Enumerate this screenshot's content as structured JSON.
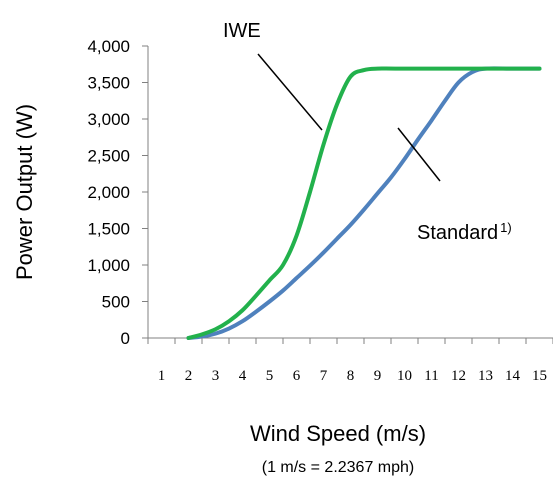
{
  "chart_data": {
    "type": "line",
    "title": "",
    "xlabel": "Wind Speed (m/s)",
    "ylabel": "Power Output (W)",
    "x_note": "(1 m/s = 2.2367 mph)",
    "xlim": [
      0.5,
      15.5
    ],
    "ylim": [
      0,
      4000
    ],
    "x_ticks": [
      "1",
      "2",
      "3",
      "4",
      "5",
      "6",
      "7",
      "8",
      "9",
      "10",
      "11",
      "12",
      "13",
      "14",
      "15"
    ],
    "y_ticks": [
      "0",
      "500",
      "1,000",
      "1,500",
      "2,000",
      "2,500",
      "3,000",
      "3,500",
      "4,000"
    ],
    "grid": false,
    "legend": "none",
    "colors": {
      "IWE": "#22b14c",
      "Standard": "#4f81bd"
    },
    "series": [
      {
        "name": "IWE",
        "x": [
          2,
          2.5,
          3,
          3.5,
          4,
          4.5,
          5,
          5.5,
          6,
          6.5,
          7,
          7.5,
          8,
          8.5,
          9,
          10,
          11,
          12,
          13,
          14,
          15
        ],
        "values": [
          0,
          50,
          120,
          230,
          380,
          580,
          790,
          1000,
          1400,
          2000,
          2650,
          3200,
          3580,
          3670,
          3690,
          3690,
          3690,
          3690,
          3690,
          3690,
          3690
        ]
      },
      {
        "name": "Standard",
        "x": [
          2,
          2.5,
          3,
          3.5,
          4,
          4.5,
          5,
          5.5,
          6,
          6.5,
          7,
          7.5,
          8,
          8.5,
          9,
          9.5,
          10,
          10.5,
          11,
          11.5,
          12,
          12.5,
          13,
          14,
          15
        ],
        "values": [
          0,
          20,
          60,
          130,
          230,
          360,
          500,
          650,
          820,
          990,
          1170,
          1360,
          1550,
          1760,
          1980,
          2200,
          2450,
          2720,
          2980,
          3250,
          3500,
          3640,
          3690,
          3690,
          3690
        ]
      }
    ],
    "annotations": {
      "iwe_label": "IWE",
      "standard_label": "Standard",
      "standard_sup": "1)"
    }
  }
}
